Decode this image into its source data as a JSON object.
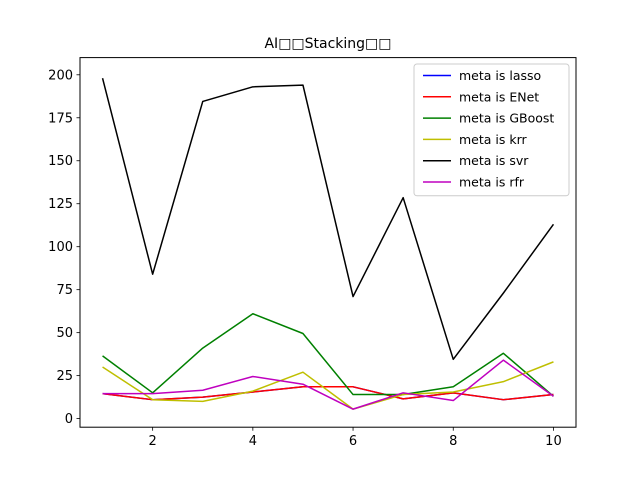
{
  "chart_data": {
    "type": "line",
    "title": "AI□□Stacking□□",
    "xlabel": "",
    "ylabel": "",
    "xlim": [
      0.55,
      10.45
    ],
    "ylim": [
      -5,
      210
    ],
    "x": [
      1,
      2,
      3,
      4,
      5,
      6,
      7,
      8,
      9,
      10
    ],
    "xticks": [
      2,
      4,
      6,
      8,
      10
    ],
    "yticks": [
      0,
      25,
      50,
      75,
      100,
      125,
      150,
      175,
      200
    ],
    "grid": false,
    "legend": "top-right",
    "series": [
      {
        "name": "meta is lasso",
        "color": "#0000ff",
        "values": [
          14.5,
          11,
          12.5,
          15.5,
          18.5,
          18.5,
          11.5,
          15,
          11,
          14
        ]
      },
      {
        "name": "meta is ENet",
        "color": "#ff0000",
        "values": [
          14.5,
          11,
          12.5,
          15.5,
          18.5,
          18.5,
          11.5,
          15,
          11,
          14
        ]
      },
      {
        "name": "meta is GBoost",
        "color": "#008000",
        "values": [
          36.5,
          15,
          41,
          61,
          49.5,
          14,
          14,
          18.5,
          38,
          13
        ]
      },
      {
        "name": "meta is krr",
        "color": "#bfbf00",
        "values": [
          30,
          11,
          10,
          16,
          27,
          5.5,
          14,
          15.5,
          21.5,
          33
        ]
      },
      {
        "name": "meta is svr",
        "color": "#000000",
        "values": [
          198,
          84,
          184.5,
          193,
          194,
          71,
          128.5,
          34.5,
          73,
          113
        ]
      },
      {
        "name": "meta is rfr",
        "color": "#bf00bf",
        "values": [
          14.5,
          14.5,
          16.5,
          24.5,
          20,
          5.5,
          15,
          10.5,
          34,
          13
        ]
      }
    ]
  }
}
